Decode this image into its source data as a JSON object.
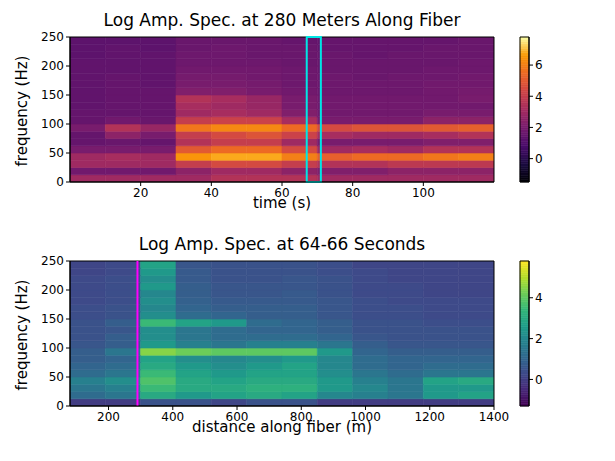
{
  "chart_data": [
    {
      "type": "heatmap",
      "title": "Log Amp. Spec. at 280 Meters Along Fiber",
      "x_label": "time (s)",
      "y_label": "frequency (Hz)",
      "xlim": [
        0,
        120
      ],
      "ylim": [
        0,
        250
      ],
      "xticks": [
        20,
        40,
        60,
        80,
        100
      ],
      "yticks": [
        0,
        50,
        100,
        150,
        200,
        250
      ],
      "color": "inferno",
      "x_edges": [
        0,
        10,
        20,
        30,
        40,
        50,
        60,
        70,
        80,
        90,
        100,
        110,
        120
      ],
      "y_edges": [
        0,
        12.5,
        25,
        37.5,
        50,
        62.5,
        75,
        87.5,
        100,
        112.5,
        125,
        137.5,
        150,
        162.5,
        175,
        187.5,
        200,
        212.5,
        225,
        237.5,
        250
      ],
      "z": [
        [
          3,
          3,
          3,
          3,
          3.5,
          3.5,
          3.5,
          3,
          3,
          3,
          3,
          3
        ],
        [
          1.8,
          1.8,
          1.8,
          2.5,
          3,
          3,
          2.5,
          2.2,
          2.2,
          2.5,
          2.5,
          2.5
        ],
        [
          3,
          3,
          3,
          4,
          4.5,
          4.5,
          4,
          3.5,
          3.5,
          3.8,
          3.8,
          3.8
        ],
        [
          3,
          3.2,
          3,
          6.5,
          6.8,
          6.8,
          6,
          5.2,
          5.5,
          5.5,
          5.8,
          6
        ],
        [
          2,
          2,
          2,
          5,
          5.5,
          5.5,
          4.5,
          3,
          3.2,
          3,
          3.5,
          3.5
        ],
        [
          1.5,
          1.6,
          1.5,
          3.5,
          4,
          4,
          3,
          2,
          2,
          2,
          2.2,
          2.2
        ],
        [
          1.5,
          2.5,
          2,
          4,
          4.5,
          4.8,
          4.2,
          3.2,
          3,
          3,
          3.2,
          3.5
        ],
        [
          2,
          3.5,
          2.8,
          5.8,
          6.2,
          6.2,
          5.5,
          4.5,
          4.8,
          4.8,
          5,
          5.2
        ],
        [
          1.5,
          1.8,
          1.6,
          4,
          4.2,
          4.2,
          3.2,
          2,
          2,
          2,
          2.5,
          2.5
        ],
        [
          1.5,
          1.5,
          1.5,
          3,
          3.2,
          3,
          2.2,
          1.8,
          1.8,
          1.8,
          2,
          2
        ],
        [
          1.4,
          1.5,
          1.5,
          3.2,
          3,
          2.8,
          2,
          1.8,
          1.8,
          1.8,
          1.8,
          1.8
        ],
        [
          1.4,
          1.5,
          1.5,
          3.5,
          3.2,
          2.8,
          2,
          1.8,
          1.8,
          1.8,
          1.8,
          2
        ],
        [
          1.4,
          1.5,
          1.5,
          2.2,
          2.2,
          2,
          1.8,
          1.7,
          1.7,
          1.7,
          1.8,
          1.9
        ],
        [
          1.4,
          1.5,
          1.4,
          2,
          2,
          1.9,
          1.7,
          1.7,
          1.7,
          1.7,
          1.8,
          1.8
        ],
        [
          1.4,
          1.5,
          1.4,
          1.9,
          1.9,
          1.8,
          1.7,
          1.7,
          1.6,
          1.7,
          1.7,
          1.8
        ],
        [
          1.4,
          1.4,
          1.4,
          1.8,
          1.8,
          1.8,
          1.7,
          1.6,
          1.6,
          1.6,
          1.7,
          1.7
        ],
        [
          1.4,
          1.4,
          1.4,
          1.7,
          1.7,
          1.7,
          1.6,
          1.6,
          1.6,
          1.6,
          1.6,
          1.7
        ],
        [
          1.3,
          1.4,
          1.4,
          1.7,
          1.7,
          1.6,
          1.6,
          1.6,
          1.5,
          1.6,
          1.6,
          1.6
        ],
        [
          1.3,
          1.4,
          1.3,
          1.6,
          1.7,
          1.6,
          1.6,
          1.5,
          1.5,
          1.5,
          1.6,
          1.6
        ],
        [
          1.3,
          1.3,
          1.3,
          1.6,
          1.6,
          1.6,
          1.5,
          1.5,
          1.5,
          1.5,
          1.5,
          1.6
        ]
      ],
      "colorbar": {
        "range": [
          -1.5,
          7.8
        ],
        "ticks": [
          0,
          2,
          4,
          6
        ]
      },
      "annotations": [
        {
          "type": "rect",
          "x": [
            67,
            71
          ],
          "color": "#00e5e5"
        }
      ]
    },
    {
      "type": "heatmap",
      "title": "Log Amp. Spec. at 64-66 Seconds",
      "x_label": "distance along fiber (m)",
      "y_label": "frequency (Hz)",
      "xlim": [
        80,
        1400
      ],
      "ylim": [
        0,
        250
      ],
      "xticks": [
        200,
        400,
        600,
        800,
        1000,
        1200,
        1400
      ],
      "yticks": [
        0,
        50,
        100,
        150,
        200,
        250
      ],
      "color": "viridis",
      "x_edges": [
        80,
        190,
        300,
        410,
        520,
        630,
        740,
        850,
        960,
        1070,
        1180,
        1290,
        1400
      ],
      "y_edges": [
        0,
        12.5,
        25,
        37.5,
        50,
        62.5,
        75,
        87.5,
        100,
        112.5,
        125,
        137.5,
        150,
        162.5,
        175,
        187.5,
        200,
        212.5,
        225,
        237.5,
        250
      ],
      "z": [
        [
          0,
          0,
          0.5,
          0.5,
          0.2,
          0.5,
          0.5,
          0,
          0,
          0,
          0,
          0
        ],
        [
          1.2,
          1.5,
          3,
          2.5,
          2.8,
          3,
          2.8,
          2,
          1.8,
          1.5,
          2.5,
          2.8
        ],
        [
          1.5,
          1.8,
          3.5,
          3,
          3,
          3.2,
          3.2,
          2.5,
          2,
          1.5,
          2.5,
          2.5
        ],
        [
          1.8,
          2.2,
          3.8,
          3,
          2.8,
          3,
          3,
          2.5,
          1.8,
          1.5,
          2.8,
          3
        ],
        [
          1.2,
          1.5,
          3.5,
          2.8,
          2.5,
          2.8,
          2.8,
          2.2,
          1.5,
          1.2,
          1.5,
          1.5
        ],
        [
          1,
          1.2,
          3,
          2.5,
          2.2,
          2.5,
          2.8,
          2,
          1.2,
          1,
          1.2,
          1.2
        ],
        [
          0.8,
          1,
          2.8,
          2.2,
          2,
          2.2,
          2.5,
          2,
          1.2,
          1,
          1,
          1
        ],
        [
          0.8,
          1.5,
          4.5,
          4.2,
          4,
          4,
          4,
          2.5,
          1,
          0.8,
          0.8,
          0.8
        ],
        [
          0.6,
          0.8,
          2.5,
          1.8,
          1.5,
          1.8,
          1.8,
          1.5,
          0.8,
          0.6,
          0.6,
          0.6
        ],
        [
          0.5,
          0.8,
          2.2,
          1.5,
          1.2,
          1.2,
          1.2,
          1,
          0.6,
          0.5,
          0.5,
          0.5
        ],
        [
          0.5,
          0.6,
          2.2,
          1.5,
          1.2,
          1,
          1,
          0.8,
          0.5,
          0.5,
          0.5,
          0.5
        ],
        [
          0.5,
          0.8,
          3.5,
          2.8,
          2.5,
          1.2,
          1,
          0.8,
          0.5,
          0.5,
          0.4,
          0.4
        ],
        [
          0.4,
          0.5,
          2.2,
          1.2,
          1,
          0.8,
          0.8,
          0.6,
          0.4,
          0.4,
          0.3,
          0.3
        ],
        [
          0.4,
          0.5,
          2,
          1,
          0.8,
          0.8,
          0.8,
          0.6,
          0.4,
          0.4,
          0.3,
          0.3
        ],
        [
          0.3,
          0.4,
          2.2,
          0.9,
          0.7,
          0.7,
          0.7,
          0.6,
          0.4,
          0.3,
          0.3,
          0.3
        ],
        [
          0.3,
          0.4,
          2,
          0.8,
          0.6,
          0.6,
          0.7,
          0.5,
          0.3,
          0.3,
          0.2,
          0.2
        ],
        [
          0.3,
          0.4,
          2.5,
          0.8,
          0.6,
          0.6,
          0.6,
          0.5,
          0.3,
          0.3,
          0.2,
          0.2
        ],
        [
          0.3,
          0.4,
          2.2,
          0.7,
          0.5,
          0.5,
          0.6,
          0.5,
          0.3,
          0.2,
          0.2,
          0.2
        ],
        [
          0.2,
          0.3,
          2.5,
          0.7,
          0.5,
          0.5,
          0.5,
          0.4,
          0.3,
          0.2,
          0.2,
          0.2
        ],
        [
          0.2,
          0.3,
          2.8,
          0.6,
          0.5,
          0.5,
          0.5,
          0.4,
          0.2,
          0.2,
          0.2,
          0.2
        ]
      ],
      "colorbar": {
        "range": [
          -1.3,
          5.8
        ],
        "ticks": [
          0,
          2,
          4
        ]
      },
      "annotations": [
        {
          "type": "vline",
          "x": 290,
          "color": "#ff00ff"
        }
      ]
    }
  ]
}
